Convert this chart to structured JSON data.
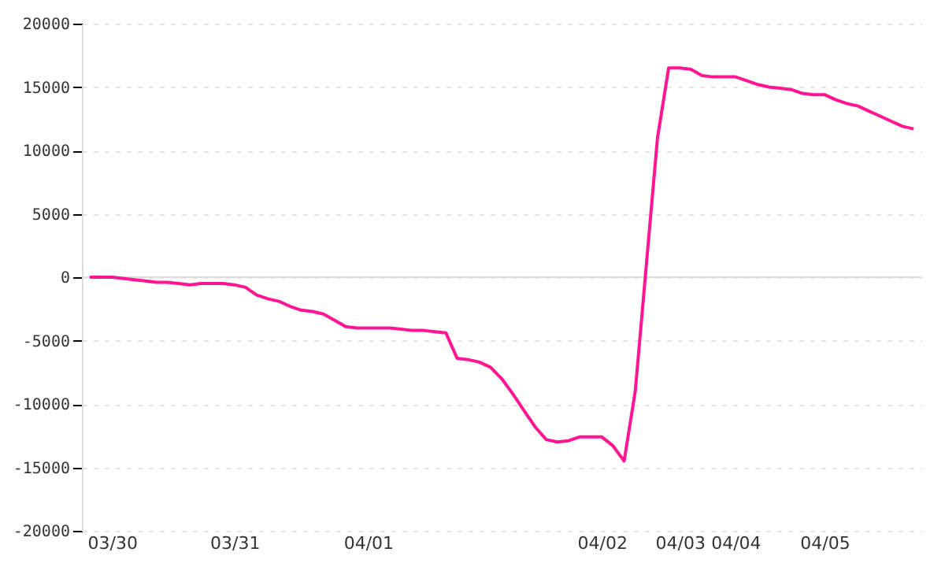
{
  "chart_data": {
    "type": "line",
    "color": "#ff1493",
    "categories": [
      null,
      null,
      "03/30",
      null,
      null,
      null,
      null,
      null,
      null,
      null,
      null,
      null,
      null,
      "03/31",
      null,
      null,
      null,
      null,
      null,
      null,
      null,
      null,
      null,
      null,
      null,
      "04/01",
      null,
      null,
      null,
      null,
      null,
      null,
      null,
      null,
      null,
      null,
      null,
      null,
      null,
      null,
      null,
      null,
      null,
      null,
      null,
      null,
      "04/02",
      null,
      null,
      null,
      null,
      null,
      null,
      "04/03",
      null,
      null,
      null,
      null,
      "04/04",
      null,
      null,
      null,
      null,
      null,
      null,
      null,
      "04/05",
      null,
      null,
      null,
      null,
      null,
      null,
      null,
      null
    ],
    "values": [
      0,
      0,
      0,
      -100,
      -200,
      -300,
      -400,
      -400,
      -500,
      -600,
      -500,
      -500,
      -500,
      -600,
      -800,
      -1400,
      -1700,
      -1900,
      -2300,
      -2600,
      -2700,
      -2900,
      -3400,
      -3900,
      -4000,
      -4000,
      -4000,
      -4000,
      -4100,
      -4200,
      -4200,
      -4300,
      -4400,
      -6400,
      -6500,
      -6700,
      -7100,
      -8000,
      -9200,
      -10500,
      -11800,
      -12800,
      -13000,
      -12900,
      -12600,
      -12600,
      -12600,
      -13300,
      -14500,
      -9000,
      1000,
      11000,
      16500,
      16500,
      16400,
      15900,
      15800,
      15800,
      15800,
      15500,
      15200,
      15000,
      14900,
      14800,
      14500,
      14400,
      14400,
      14000,
      13700,
      13500,
      13100,
      12700,
      12300,
      11900,
      11700
    ],
    "ylim": [
      -20000,
      20000
    ],
    "yticks": [
      -20000,
      -15000,
      -10000,
      -5000,
      0,
      5000,
      10000,
      15000,
      20000
    ],
    "grid": "y",
    "ref_lines": [
      {
        "axis": "y",
        "value": 0,
        "color": "#dddddd"
      }
    ]
  }
}
